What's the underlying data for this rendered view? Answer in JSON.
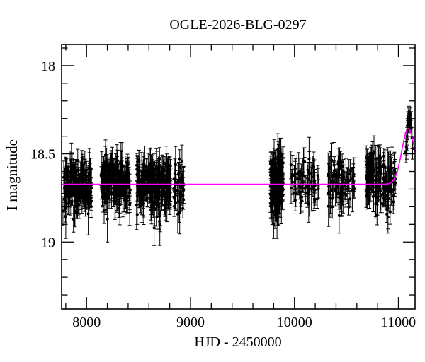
{
  "title": "OGLE-2026-BLG-0297",
  "chart_data": {
    "type": "scatter",
    "title": "OGLE-2026-BLG-0297",
    "xlabel": "HJD - 2450000",
    "ylabel": "I magnitude",
    "xlim": [
      7760,
      11160
    ],
    "ylim": [
      19.38,
      17.88
    ],
    "y_axis_inverted": true,
    "grid": false,
    "legend": "none",
    "background_color": "#ffffff",
    "frame_color": "#000000",
    "point_color": "#000000",
    "model_color": "#ff00ff",
    "x_major_ticks": [
      8000,
      9000,
      10000,
      11000
    ],
    "x_major_tick_labels": [
      "8000",
      "9000",
      "10000",
      "11000"
    ],
    "x_minor_tick_step": 200,
    "y_major_ticks": [
      18,
      18.5,
      19
    ],
    "y_major_tick_labels": [
      "18",
      "18.5",
      "19"
    ],
    "y_minor_tick_step": 0.1,
    "baseline_mag": 18.67,
    "model_curve": {
      "shape": "flat_baseline_with_gaussian_brightening",
      "baseline_mag": 18.672,
      "peak_mag": 18.357,
      "t_peak": 11095,
      "sigma_days": 62,
      "color": "#ff00ff"
    },
    "observing_seasons": [
      {
        "t_start": 7770,
        "t_end": 8050,
        "n": 170,
        "mean_mag": 18.68,
        "sigma_mag": 0.062,
        "mag_min": 18.5,
        "mag_max": 18.88,
        "err_min": 0.035,
        "err_max": 0.11
      },
      {
        "t_start": 8140,
        "t_end": 8420,
        "n": 180,
        "mean_mag": 18.67,
        "sigma_mag": 0.062,
        "mag_min": 18.49,
        "mag_max": 18.89,
        "err_min": 0.035,
        "err_max": 0.11
      },
      {
        "t_start": 8480,
        "t_end": 8810,
        "n": 230,
        "mean_mag": 18.68,
        "sigma_mag": 0.068,
        "mag_min": 18.5,
        "mag_max": 18.93,
        "err_min": 0.035,
        "err_max": 0.12
      },
      {
        "t_start": 8840,
        "t_end": 8935,
        "n": 42,
        "mean_mag": 18.67,
        "sigma_mag": 0.07,
        "mag_min": 18.52,
        "mag_max": 18.88,
        "err_min": 0.04,
        "err_max": 0.11
      },
      {
        "t_start": 9768,
        "t_end": 9892,
        "n": 150,
        "mean_mag": 18.67,
        "sigma_mag": 0.085,
        "mag_min": 18.45,
        "mag_max": 18.94,
        "err_min": 0.04,
        "err_max": 0.12
      },
      {
        "t_start": 9958,
        "t_end": 10235,
        "n": 62,
        "mean_mag": 18.67,
        "sigma_mag": 0.07,
        "mag_min": 18.5,
        "mag_max": 18.88,
        "err_min": 0.04,
        "err_max": 0.12
      },
      {
        "t_start": 10320,
        "t_end": 10580,
        "n": 72,
        "mean_mag": 18.66,
        "sigma_mag": 0.07,
        "mag_min": 18.49,
        "mag_max": 18.87,
        "err_min": 0.04,
        "err_max": 0.12
      },
      {
        "t_start": 10690,
        "t_end": 10975,
        "n": 120,
        "mean_mag": 18.65,
        "sigma_mag": 0.075,
        "mag_min": 18.45,
        "mag_max": 18.88,
        "err_min": 0.04,
        "err_max": 0.12
      }
    ],
    "event_points": [
      [
        11072,
        18.49,
        0.06
      ],
      [
        11076,
        18.46,
        0.05
      ],
      [
        11079,
        18.43,
        0.05
      ],
      [
        11081,
        18.47,
        0.06
      ],
      [
        11083,
        18.4,
        0.05
      ],
      [
        11085,
        18.37,
        0.05
      ],
      [
        11087,
        18.34,
        0.04
      ],
      [
        11089,
        18.36,
        0.05
      ],
      [
        11091,
        18.32,
        0.04
      ],
      [
        11093,
        18.3,
        0.04
      ],
      [
        11094,
        18.33,
        0.05
      ],
      [
        11096,
        18.29,
        0.04
      ],
      [
        11097,
        18.31,
        0.04
      ],
      [
        11099,
        18.28,
        0.04
      ],
      [
        11101,
        18.3,
        0.04
      ],
      [
        11103,
        18.27,
        0.04
      ],
      [
        11105,
        18.31,
        0.05
      ],
      [
        11107,
        18.29,
        0.04
      ],
      [
        11109,
        18.32,
        0.05
      ],
      [
        11111,
        18.3,
        0.04
      ],
      [
        11114,
        18.28,
        0.04
      ],
      [
        11117,
        18.33,
        0.05
      ],
      [
        11121,
        18.31,
        0.05
      ],
      [
        11126,
        18.35,
        0.05
      ],
      [
        11131,
        18.41,
        0.06
      ],
      [
        11136,
        18.47,
        0.06
      ]
    ],
    "extra_faint_points": [
      [
        7800,
        18.86,
        0.12
      ],
      [
        8200,
        18.87,
        0.13
      ],
      [
        8650,
        18.92,
        0.1
      ],
      [
        8705,
        18.9,
        0.12
      ],
      [
        9800,
        18.9,
        0.08
      ],
      [
        9832,
        18.88,
        0.1
      ],
      [
        10430,
        18.85,
        0.1
      ],
      [
        10900,
        18.86,
        0.09
      ]
    ]
  }
}
